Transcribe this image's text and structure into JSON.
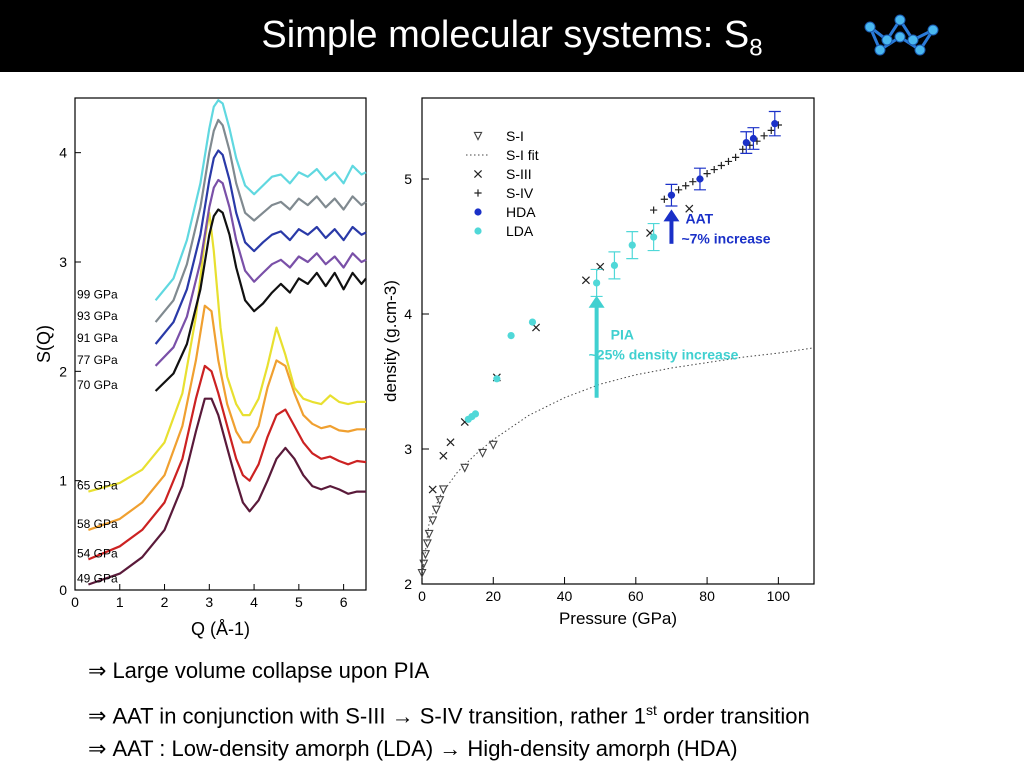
{
  "slide": {
    "title": "Simple molecular systems: S",
    "title_sub": "8",
    "bullets": [
      {
        "symbol": "⇒",
        "text": "Large volume collapse upon PIA"
      },
      {
        "symbol": "⇒",
        "text": "AAT in conjunction with S-III → S-IV transition, rather 1",
        "sup": "st",
        "tail": " order transition"
      },
      {
        "symbol": "⇒",
        "text": "AAT : Low-density amorph (LDA) → High-density amorph (HDA)"
      }
    ],
    "icon": "s8-molecule-icon"
  },
  "chart_data": [
    {
      "type": "line",
      "title": "",
      "xlabel": "Q (Å-1)",
      "ylabel": "S(Q)",
      "xlim": [
        0,
        6.5
      ],
      "ylim": [
        0,
        4.5
      ],
      "xticks": [
        0,
        1,
        2,
        3,
        4,
        5,
        6
      ],
      "yticks": [
        0,
        1,
        2,
        3,
        4
      ],
      "series": [
        {
          "name": "49 GPa",
          "color": "#5a1a3a",
          "offset": 0.0,
          "x": [
            0.3,
            1.0,
            1.5,
            2.0,
            2.4,
            2.7,
            2.9,
            3.05,
            3.2,
            3.4,
            3.6,
            3.75,
            3.9,
            4.1,
            4.3,
            4.5,
            4.7,
            4.9,
            5.1,
            5.3,
            5.5,
            5.7,
            5.9,
            6.1,
            6.3,
            6.5
          ],
          "y": [
            0.05,
            0.15,
            0.3,
            0.55,
            0.95,
            1.45,
            1.75,
            1.75,
            1.6,
            1.3,
            1.0,
            0.8,
            0.72,
            0.82,
            1.0,
            1.2,
            1.3,
            1.2,
            1.05,
            0.95,
            0.92,
            0.95,
            0.92,
            0.88,
            0.9,
            0.9
          ]
        },
        {
          "name": "54 GPa",
          "color": "#cc2222",
          "offset": 0.0,
          "x": [
            0.3,
            1.0,
            1.5,
            2.0,
            2.4,
            2.7,
            2.9,
            3.05,
            3.2,
            3.4,
            3.6,
            3.75,
            3.9,
            4.1,
            4.3,
            4.5,
            4.7,
            4.9,
            5.1,
            5.3,
            5.5,
            5.7,
            5.9,
            6.1,
            6.3,
            6.5
          ],
          "y": [
            0.28,
            0.4,
            0.55,
            0.8,
            1.2,
            1.75,
            2.05,
            2.0,
            1.8,
            1.5,
            1.2,
            1.05,
            1.0,
            1.15,
            1.4,
            1.6,
            1.65,
            1.5,
            1.35,
            1.25,
            1.2,
            1.22,
            1.18,
            1.15,
            1.18,
            1.17
          ]
        },
        {
          "name": "58 GPa",
          "color": "#f0a030",
          "offset": 0.0,
          "x": [
            0.3,
            1.0,
            1.5,
            2.0,
            2.4,
            2.7,
            2.9,
            3.05,
            3.2,
            3.4,
            3.6,
            3.75,
            3.9,
            4.1,
            4.3,
            4.5,
            4.7,
            4.9,
            5.1,
            5.3,
            5.5,
            5.7,
            5.9,
            6.1,
            6.3,
            6.5
          ],
          "y": [
            0.55,
            0.65,
            0.8,
            1.05,
            1.5,
            2.1,
            2.6,
            2.55,
            2.1,
            1.7,
            1.45,
            1.35,
            1.35,
            1.5,
            1.85,
            2.1,
            2.05,
            1.8,
            1.6,
            1.52,
            1.48,
            1.5,
            1.46,
            1.45,
            1.47,
            1.47
          ]
        },
        {
          "name": "65 GPa",
          "color": "#e8e030",
          "offset": 0.0,
          "x": [
            0.3,
            1.0,
            1.5,
            2.0,
            2.4,
            2.7,
            2.9,
            3.0,
            3.1,
            3.25,
            3.4,
            3.6,
            3.75,
            3.9,
            4.1,
            4.3,
            4.5,
            4.7,
            4.9,
            5.1,
            5.3,
            5.5,
            5.7,
            5.9,
            6.1,
            6.3,
            6.5
          ],
          "y": [
            0.9,
            0.98,
            1.1,
            1.35,
            1.8,
            2.5,
            3.2,
            3.45,
            3.1,
            2.4,
            1.95,
            1.7,
            1.6,
            1.6,
            1.75,
            2.05,
            2.4,
            2.15,
            1.85,
            1.75,
            1.72,
            1.7,
            1.78,
            1.72,
            1.7,
            1.72,
            1.72
          ]
        },
        {
          "name": "70 GPa",
          "color": "#111111",
          "offset": 0.0,
          "x": [
            1.8,
            2.2,
            2.5,
            2.8,
            3.0,
            3.1,
            3.2,
            3.3,
            3.45,
            3.6,
            3.8,
            4.0,
            4.2,
            4.4,
            4.6,
            4.8,
            5.0,
            5.2,
            5.4,
            5.6,
            5.8,
            6.0,
            6.2,
            6.4,
            6.5
          ],
          "y": [
            1.82,
            1.98,
            2.25,
            2.75,
            3.25,
            3.42,
            3.48,
            3.45,
            3.25,
            2.95,
            2.65,
            2.55,
            2.62,
            2.72,
            2.8,
            2.72,
            2.85,
            2.8,
            2.9,
            2.78,
            2.9,
            2.75,
            2.9,
            2.8,
            2.85
          ]
        },
        {
          "name": "77 GPa",
          "color": "#7a50a8",
          "offset": 0.0,
          "x": [
            1.8,
            2.2,
            2.5,
            2.8,
            3.0,
            3.1,
            3.2,
            3.3,
            3.45,
            3.6,
            3.8,
            4.0,
            4.2,
            4.4,
            4.6,
            4.8,
            5.0,
            5.2,
            5.4,
            5.6,
            5.8,
            6.0,
            6.2,
            6.4,
            6.5
          ],
          "y": [
            2.05,
            2.22,
            2.5,
            3.0,
            3.5,
            3.68,
            3.75,
            3.72,
            3.5,
            3.2,
            2.92,
            2.82,
            2.9,
            2.98,
            3.02,
            2.95,
            3.05,
            3.0,
            3.08,
            2.98,
            3.05,
            2.95,
            3.08,
            3.0,
            3.02
          ]
        },
        {
          "name": "91 GPa",
          "color": "#2a3aa8",
          "offset": 0.0,
          "x": [
            1.8,
            2.2,
            2.5,
            2.8,
            3.0,
            3.1,
            3.2,
            3.3,
            3.45,
            3.6,
            3.8,
            4.0,
            4.2,
            4.4,
            4.6,
            4.8,
            5.0,
            5.2,
            5.4,
            5.6,
            5.8,
            6.0,
            6.2,
            6.4,
            6.5
          ],
          "y": [
            2.25,
            2.45,
            2.75,
            3.25,
            3.75,
            3.95,
            4.02,
            3.98,
            3.75,
            3.45,
            3.18,
            3.1,
            3.18,
            3.25,
            3.28,
            3.2,
            3.3,
            3.25,
            3.32,
            3.22,
            3.3,
            3.2,
            3.32,
            3.25,
            3.27
          ]
        },
        {
          "name": "93 GPa",
          "color": "#808a90",
          "offset": 0.0,
          "x": [
            1.8,
            2.2,
            2.5,
            2.8,
            3.0,
            3.1,
            3.2,
            3.3,
            3.45,
            3.6,
            3.8,
            4.0,
            4.2,
            4.4,
            4.6,
            4.8,
            5.0,
            5.2,
            5.4,
            5.6,
            5.8,
            6.0,
            6.2,
            6.4,
            6.5
          ],
          "y": [
            2.45,
            2.65,
            2.98,
            3.5,
            4.0,
            4.2,
            4.3,
            4.25,
            4.02,
            3.72,
            3.45,
            3.38,
            3.45,
            3.52,
            3.55,
            3.48,
            3.58,
            3.52,
            3.6,
            3.5,
            3.58,
            3.48,
            3.6,
            3.52,
            3.55
          ]
        },
        {
          "name": "99 GPa",
          "color": "#60d8e0",
          "offset": 0.0,
          "x": [
            1.8,
            2.2,
            2.5,
            2.8,
            3.0,
            3.1,
            3.2,
            3.3,
            3.45,
            3.6,
            3.8,
            4.0,
            4.2,
            4.4,
            4.6,
            4.8,
            5.0,
            5.2,
            5.4,
            5.6,
            5.8,
            6.0,
            6.2,
            6.4,
            6.5
          ],
          "y": [
            2.65,
            2.85,
            3.2,
            3.72,
            4.22,
            4.42,
            4.48,
            4.45,
            4.22,
            3.95,
            3.7,
            3.62,
            3.7,
            3.78,
            3.8,
            3.72,
            3.82,
            3.78,
            3.85,
            3.75,
            3.82,
            3.72,
            3.88,
            3.8,
            3.82
          ]
        }
      ]
    },
    {
      "type": "scatter",
      "title": "",
      "xlabel": "Pressure (GPa)",
      "ylabel": "density (g.cm-3)",
      "xlim": [
        0,
        110
      ],
      "ylim": [
        2,
        5.6
      ],
      "xticks": [
        0,
        20,
        40,
        60,
        80,
        100
      ],
      "yticks": [
        2,
        3,
        4,
        5
      ],
      "legend_position": "top-left",
      "series": [
        {
          "name": "S-I",
          "marker": "triangle-down",
          "color": "#444444",
          "x": [
            0,
            0.5,
            1,
            1.5,
            2,
            3,
            4,
            5,
            6,
            12,
            17,
            20
          ],
          "y": [
            2.08,
            2.15,
            2.22,
            2.3,
            2.37,
            2.47,
            2.55,
            2.62,
            2.7,
            2.86,
            2.97,
            3.03
          ]
        },
        {
          "name": "S-I fit",
          "marker": "dotted-line",
          "color": "#444444",
          "x": [
            0,
            2,
            5,
            10,
            15,
            20,
            30,
            40,
            50,
            60,
            70,
            80,
            90,
            100,
            110
          ],
          "y": [
            2.05,
            2.45,
            2.65,
            2.83,
            2.96,
            3.07,
            3.25,
            3.38,
            3.48,
            3.55,
            3.6,
            3.64,
            3.68,
            3.71,
            3.75
          ]
        },
        {
          "name": "S-III",
          "marker": "x",
          "color": "#222222",
          "x": [
            3,
            6,
            8,
            12,
            21,
            32,
            46,
            50,
            64,
            75
          ],
          "y": [
            2.7,
            2.95,
            3.05,
            3.2,
            3.53,
            3.9,
            4.25,
            4.35,
            4.6,
            4.78
          ]
        },
        {
          "name": "S-IV",
          "marker": "plus",
          "color": "#222222",
          "x": [
            65,
            68,
            70,
            72,
            74,
            76,
            78,
            80,
            82,
            84,
            86,
            88,
            90,
            92,
            94,
            96,
            98,
            100
          ],
          "y": [
            4.77,
            4.85,
            4.88,
            4.92,
            4.95,
            4.98,
            5.0,
            5.04,
            5.07,
            5.1,
            5.13,
            5.16,
            5.22,
            5.25,
            5.28,
            5.32,
            5.36,
            5.4
          ]
        },
        {
          "name": "HDA",
          "marker": "circle",
          "color": "#1a30c8",
          "x": [
            70,
            78,
            91,
            93,
            99
          ],
          "y": [
            4.88,
            5.0,
            5.27,
            5.3,
            5.41
          ],
          "yerr": [
            0.08,
            0.08,
            0.08,
            0.08,
            0.09
          ]
        },
        {
          "name": "LDA",
          "marker": "circle",
          "color": "#50d8d8",
          "x": [
            13,
            14,
            15,
            21,
            25,
            31,
            49,
            54,
            59,
            65
          ],
          "y": [
            3.22,
            3.24,
            3.26,
            3.52,
            3.84,
            3.94,
            4.23,
            4.36,
            4.51,
            4.57
          ],
          "yerr": [
            0,
            0,
            0,
            0,
            0,
            0,
            0.1,
            0.1,
            0.1,
            0.1
          ]
        }
      ],
      "annotations": [
        {
          "text": "AAT",
          "text2": "~7% increase",
          "color": "#1a30c8",
          "arrow_from": [
            70,
            4.52
          ],
          "arrow_to": [
            70,
            4.76
          ]
        },
        {
          "text": "PIA",
          "text2": "~25% density increase",
          "color": "#40d0d0",
          "arrow_from": [
            49,
            3.38
          ],
          "arrow_to": [
            49,
            4.12
          ]
        }
      ]
    }
  ]
}
